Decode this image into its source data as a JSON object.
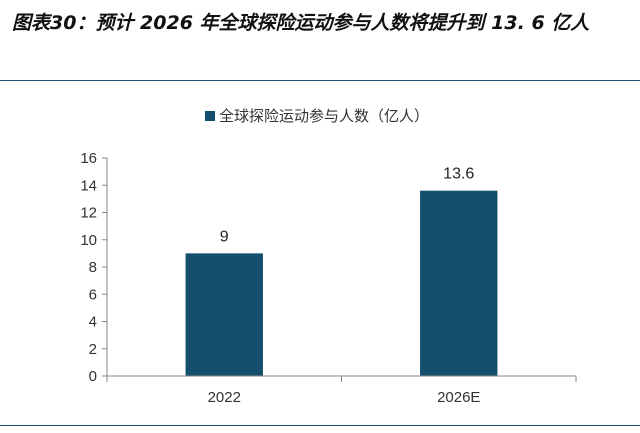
{
  "figure": {
    "title": "图表30：预计 2026 年全球探险运动参与人数将提升到 13. 6 亿人"
  },
  "colors": {
    "bar": "#14506e",
    "axis": "#888888",
    "rule": "#1f4e79"
  },
  "chart_data": {
    "type": "bar",
    "title": "",
    "categories": [
      "2022",
      "2026E"
    ],
    "series": [
      {
        "name": "全球探险运动参与人数（亿人）",
        "values": [
          9,
          13.6
        ]
      }
    ],
    "data_labels": [
      "9",
      "13.6"
    ],
    "ylim": [
      0,
      16
    ],
    "yticks": [
      0,
      2,
      4,
      6,
      8,
      10,
      12,
      14,
      16
    ],
    "xlabel": "",
    "ylabel": "",
    "grid": false,
    "legend_position": "top-center"
  }
}
